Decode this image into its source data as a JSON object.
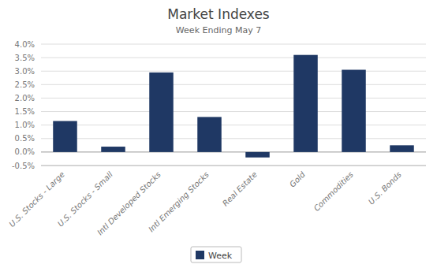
{
  "chart_data": {
    "type": "bar",
    "title": "Market Indexes",
    "subtitle": "Week Ending May 7",
    "categories": [
      "U.S. Stocks - Large",
      "U.S. Stocks - Small",
      "Intl Developed Stocks",
      "Intl Emerging Stocks",
      "Real Estate",
      "Gold",
      "Commodities",
      "U.S. Bonds"
    ],
    "series": [
      {
        "name": "Week",
        "color": "#1F3864",
        "values": [
          0.0115,
          0.002,
          0.0295,
          0.013,
          -0.002,
          0.036,
          0.0305,
          0.0025
        ]
      }
    ],
    "ylim": [
      -0.005,
      0.04
    ],
    "yticks": [
      {
        "value": -0.005,
        "label": "-0.5%"
      },
      {
        "value": 0.0,
        "label": "0.0%"
      },
      {
        "value": 0.005,
        "label": "0.5%"
      },
      {
        "value": 0.01,
        "label": "1.0%"
      },
      {
        "value": 0.015,
        "label": "1.5%"
      },
      {
        "value": 0.02,
        "label": "2.0%"
      },
      {
        "value": 0.025,
        "label": "2.5%"
      },
      {
        "value": 0.03,
        "label": "3.0%"
      },
      {
        "value": 0.035,
        "label": "3.5%"
      },
      {
        "value": 0.04,
        "label": "4.0%"
      }
    ],
    "grid": true,
    "legend": "bottom"
  }
}
